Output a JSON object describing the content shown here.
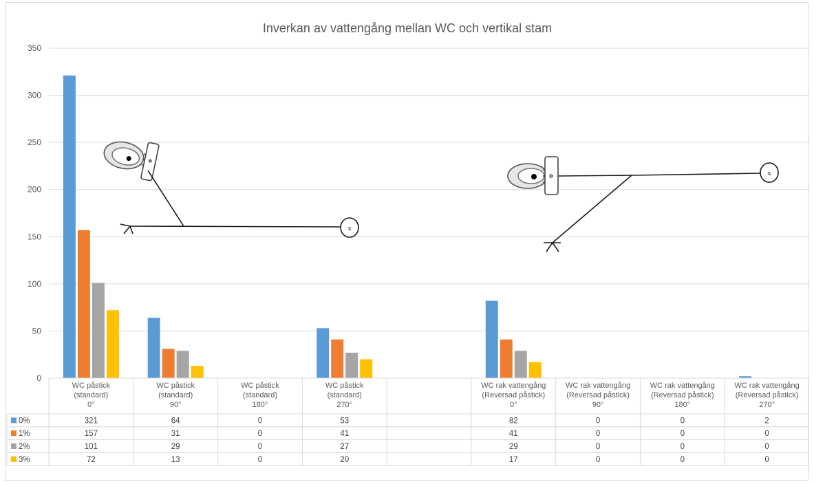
{
  "colors": {
    "series": [
      "#5b9bd5",
      "#ed7d31",
      "#a5a5a5",
      "#ffc000"
    ],
    "grid": "#d9d9d9",
    "text": "#595959"
  },
  "chart_data": {
    "type": "bar",
    "title": "Inverkan av vattengång mellan WC och vertikal stam",
    "xlabel": "",
    "ylabel": "",
    "ylim": [
      0,
      350
    ],
    "yticks": [
      0,
      50,
      100,
      150,
      200,
      250,
      300,
      350
    ],
    "grid": true,
    "legend": "data table, left",
    "categories": [
      [
        "WC påstick",
        "(standard)",
        "0°"
      ],
      [
        "WC påstick",
        "(standard)",
        "90°"
      ],
      [
        "WC påstick",
        "(standard)",
        "180°"
      ],
      [
        "WC påstick",
        "(standard)",
        "270°"
      ],
      [],
      [
        "WC rak vattengång",
        "(Reversad påstick)",
        "0°"
      ],
      [
        "WC rak vattengång",
        "(Reversad påstick)",
        "90°"
      ],
      [
        "WC rak vattengång",
        "(Reversad påstick)",
        "180°"
      ],
      [
        "WC rak vattengång",
        "(Reversad påstick)",
        "270°"
      ]
    ],
    "series": [
      {
        "name": "0%",
        "values": [
          321,
          64,
          0,
          53,
          null,
          82,
          0,
          0,
          2
        ]
      },
      {
        "name": "1%",
        "values": [
          157,
          31,
          0,
          41,
          null,
          41,
          0,
          0,
          0
        ]
      },
      {
        "name": "2%",
        "values": [
          101,
          29,
          0,
          27,
          null,
          29,
          0,
          0,
          0
        ]
      },
      {
        "name": "3%",
        "values": [
          72,
          13,
          0,
          20,
          null,
          17,
          0,
          0,
          0
        ]
      }
    ]
  }
}
